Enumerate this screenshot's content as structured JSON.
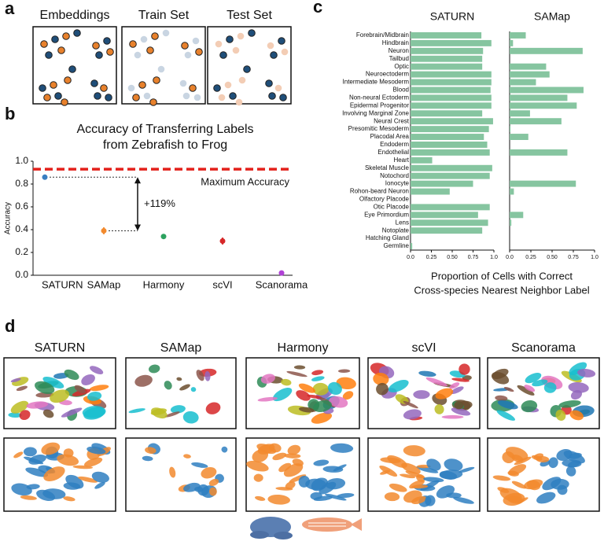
{
  "panels": {
    "a": {
      "label": "a",
      "box_titles": [
        "Embeddings",
        "Train Set",
        "Test Set"
      ]
    },
    "b": {
      "label": "b"
    },
    "c": {
      "label": "c"
    },
    "d": {
      "label": "d",
      "column_titles": [
        "SATURN",
        "SAMap",
        "Harmony",
        "scVI",
        "Scanorama"
      ]
    }
  },
  "chart_data": [
    {
      "type": "dot",
      "title": [
        "Accuracy of Transferring Labels",
        "from Zebrafish to Frog"
      ],
      "ylabel": "Accuracy",
      "categories": [
        "SATURN",
        "SAMap",
        "Harmony",
        "scVI",
        "Scanorama"
      ],
      "values": [
        0.86,
        0.39,
        0.34,
        0.3,
        0.02
      ],
      "errors": [
        0.01,
        0.03,
        0.01,
        0.03,
        0.005
      ],
      "colors": [
        "#3a7fc1",
        "#f28a2e",
        "#2ca25f",
        "#d62728",
        "#b042d6"
      ],
      "ylim": [
        0,
        1
      ],
      "yticks": [
        {
          "value": 0,
          "label": "0.0"
        },
        0.2,
        0.4,
        0.6,
        0.8,
        {
          "value": 1,
          "label": "1.0"
        }
      ],
      "reference_line": {
        "value": 0.93,
        "label": "Maximum Accuracy",
        "color": "#e3201b"
      },
      "annotation": "+119%"
    },
    {
      "type": "bar",
      "orientation": "horizontal",
      "xlabel": [
        "Proportion of Cells with Correct",
        "Cross-species Nearest Neighbor Label"
      ],
      "categories": [
        "Forebrain/Midbrain",
        "Hindbrain",
        "Neuron",
        "Tailbud",
        "Optic",
        "Neuroectoderm",
        "Intermediate Mesoderm",
        "Blood",
        "Non-neural Ectoderm",
        "Epidermal Progenitor",
        "Involving Marginal Zone",
        "Neural Crest",
        "Presomitic Mesoderm",
        "Placodal Area",
        "Endoderm",
        "Endothelial",
        "Heart",
        "Skeletal Muscle",
        "Notochord",
        "Ionocyte",
        "Rohon-beard Neuron",
        "Olfactory Placode",
        "Otic Placode",
        "Eye Primordium",
        "Lens",
        "Notoplate",
        "Hatching Gland",
        "Germline"
      ],
      "series": [
        {
          "name": "SATURN",
          "color": "#86c5a0",
          "values": [
            0.85,
            0.97,
            0.87,
            0.86,
            0.86,
            0.97,
            0.97,
            0.96,
            0.97,
            0.97,
            0.86,
            0.99,
            0.94,
            0.88,
            0.92,
            0.95,
            0.26,
            0.98,
            0.95,
            0.75,
            0.47,
            0,
            0.95,
            0.81,
            0.93,
            0.86,
            0,
            0.02
          ]
        },
        {
          "name": "SAMap",
          "color": "#86c5a0",
          "values": [
            0.19,
            0.04,
            0.86,
            0,
            0.43,
            0.47,
            0.31,
            0.87,
            0.68,
            0.79,
            0.24,
            0.61,
            0.01,
            0.22,
            0,
            0.68,
            0,
            0,
            0,
            0.78,
            0.05,
            0,
            0,
            0.16,
            0.02,
            0,
            0,
            0
          ]
        }
      ],
      "xlim": [
        0,
        1
      ],
      "xticks": [
        {
          "value": 0,
          "label": "0.0"
        },
        0.25,
        {
          "value": 0.5,
          "label": "0.50"
        },
        0.75,
        {
          "value": 1,
          "label": "1.0"
        }
      ]
    }
  ]
}
